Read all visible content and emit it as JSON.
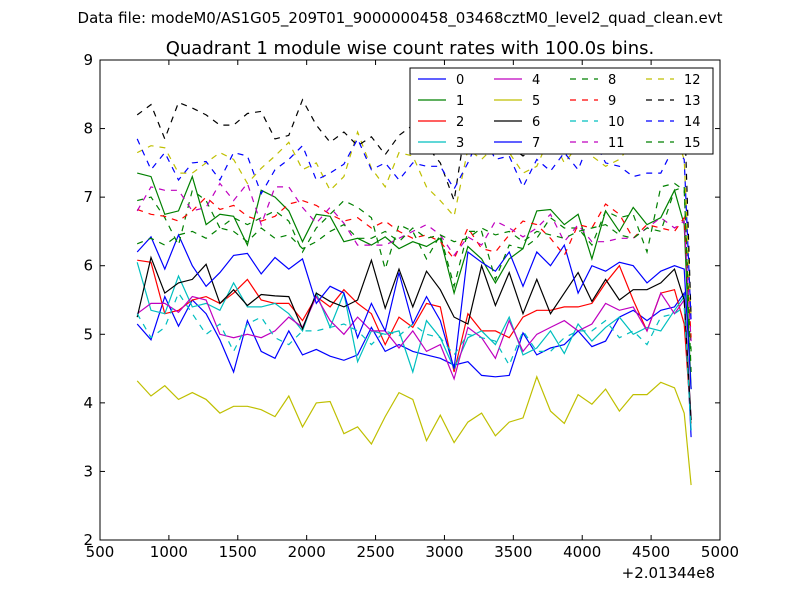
{
  "chart_data": {
    "type": "line",
    "supertitle": "Data file: modeM0/AS1G05_209T01_9000000458_03468cztM0_level2_quad_clean.evt",
    "title": "Quadrant 1 module wise count rates with 100.0s bins.",
    "xlabel": "",
    "ylabel": "",
    "x_offset_label": "+2.01344e8",
    "xlim": [
      500,
      5000
    ],
    "ylim": [
      2,
      9
    ],
    "xticks": [
      500,
      1000,
      1500,
      2000,
      2500,
      3000,
      3500,
      4000,
      4500,
      5000
    ],
    "xtick_labels": [
      "500",
      "1000",
      "1500",
      "2000",
      "2500",
      "3000",
      "3500",
      "4000",
      "4500",
      "5000"
    ],
    "yticks": [
      2,
      3,
      4,
      5,
      6,
      7,
      8,
      9
    ],
    "ytick_labels": [
      "2",
      "3",
      "4",
      "5",
      "6",
      "7",
      "8",
      "9"
    ],
    "grid": false,
    "legend_position": "top-right",
    "x": [
      770,
      870,
      970,
      1070,
      1170,
      1270,
      1370,
      1470,
      1570,
      1670,
      1770,
      1870,
      1970,
      2070,
      2170,
      2270,
      2370,
      2470,
      2570,
      2670,
      2770,
      2870,
      2970,
      3070,
      3170,
      3270,
      3370,
      3470,
      3570,
      3670,
      3770,
      3870,
      3970,
      4070,
      4170,
      4270,
      4370,
      4470,
      4570,
      4670,
      4740,
      4790
    ],
    "series": [
      {
        "name": "0",
        "color": "#0000ff",
        "dash": "solid",
        "values": [
          5.15,
          4.92,
          5.55,
          5.12,
          5.5,
          5.3,
          4.92,
          4.45,
          5.2,
          4.75,
          4.65,
          5.05,
          4.7,
          4.78,
          4.68,
          4.62,
          4.7,
          5.1,
          4.75,
          4.85,
          4.75,
          4.7,
          4.65,
          4.55,
          4.6,
          4.4,
          4.38,
          4.4,
          5.02,
          4.7,
          4.8,
          4.85,
          5.05,
          4.82,
          4.9,
          5.25,
          5.35,
          5.2,
          5.35,
          5.4,
          5.6,
          3.5
        ]
      },
      {
        "name": "1",
        "color": "#008000",
        "dash": "solid",
        "values": [
          7.35,
          7.3,
          6.75,
          6.8,
          7.3,
          6.6,
          6.75,
          6.72,
          6.3,
          7.1,
          7.0,
          6.8,
          6.35,
          6.75,
          6.72,
          6.35,
          6.4,
          6.3,
          6.42,
          6.25,
          6.35,
          6.28,
          6.4,
          5.6,
          6.28,
          6.1,
          5.75,
          6.1,
          6.25,
          6.8,
          6.82,
          6.6,
          6.75,
          6.1,
          6.8,
          6.5,
          6.85,
          6.6,
          6.7,
          7.1,
          6.6,
          4.2
        ]
      },
      {
        "name": "2",
        "color": "#ff0000",
        "dash": "solid",
        "values": [
          6.08,
          6.05,
          5.3,
          5.35,
          5.5,
          5.55,
          5.45,
          5.6,
          5.8,
          5.5,
          5.45,
          5.45,
          5.2,
          5.55,
          5.4,
          5.65,
          5.45,
          5.3,
          4.85,
          5.25,
          5.1,
          5.45,
          5.4,
          4.45,
          5.3,
          5.05,
          5.05,
          4.95,
          5.25,
          5.35,
          5.35,
          5.4,
          5.4,
          5.45,
          5.75,
          6.0,
          5.5,
          5.05,
          5.6,
          5.65,
          5.15,
          3.7
        ]
      },
      {
        "name": "3",
        "color": "#00bfbf",
        "dash": "solid",
        "values": [
          6.05,
          5.35,
          5.3,
          5.85,
          5.4,
          5.45,
          5.35,
          5.75,
          5.4,
          5.4,
          5.45,
          5.3,
          5.05,
          5.6,
          5.1,
          5.6,
          4.6,
          5.05,
          5.0,
          5.05,
          4.45,
          5.2,
          4.95,
          4.5,
          4.95,
          5.05,
          4.85,
          5.25,
          4.7,
          4.8,
          5.05,
          4.72,
          5.15,
          4.9,
          5.1,
          5.25,
          5.0,
          5.1,
          5.05,
          5.35,
          5.55,
          3.6
        ]
      },
      {
        "name": "4",
        "color": "#bf00bf",
        "dash": "solid",
        "values": [
          5.3,
          5.45,
          5.45,
          5.32,
          5.55,
          5.5,
          5.0,
          4.95,
          5.0,
          4.95,
          5.05,
          5.25,
          5.1,
          5.55,
          5.2,
          5.0,
          5.25,
          5.05,
          5.05,
          4.8,
          5.05,
          4.75,
          4.85,
          4.35,
          5.1,
          4.95,
          4.65,
          5.2,
          4.75,
          5.0,
          5.1,
          5.2,
          5.05,
          5.15,
          5.45,
          5.35,
          5.4,
          5.05,
          5.6,
          5.3,
          5.5,
          3.75
        ]
      },
      {
        "name": "5",
        "color": "#bfbf00",
        "dash": "solid",
        "values": [
          4.32,
          4.1,
          4.25,
          4.05,
          4.15,
          4.05,
          3.85,
          3.95,
          3.95,
          3.9,
          3.8,
          4.1,
          3.65,
          4.0,
          4.02,
          3.55,
          3.65,
          3.4,
          3.8,
          4.15,
          4.05,
          3.45,
          3.82,
          3.42,
          3.72,
          3.85,
          3.52,
          3.72,
          3.78,
          4.38,
          3.88,
          3.7,
          4.12,
          3.98,
          4.2,
          3.88,
          4.12,
          4.12,
          4.3,
          4.22,
          3.85,
          2.8
        ]
      },
      {
        "name": "6",
        "color": "#000000",
        "dash": "solid",
        "values": [
          5.25,
          6.12,
          5.6,
          5.75,
          5.8,
          6.02,
          5.45,
          5.65,
          5.42,
          5.58,
          5.56,
          5.55,
          5.08,
          5.6,
          5.48,
          5.4,
          5.5,
          6.08,
          5.38,
          5.95,
          5.4,
          5.92,
          5.65,
          5.25,
          5.15,
          6.0,
          5.42,
          5.9,
          5.3,
          5.8,
          5.3,
          5.6,
          5.9,
          5.48,
          5.8,
          5.5,
          5.65,
          5.65,
          5.75,
          5.95,
          5.5,
          3.75
        ]
      },
      {
        "name": "7",
        "color": "#0000ff",
        "dash": "solid",
        "values": [
          6.2,
          6.42,
          5.95,
          6.45,
          6.0,
          5.7,
          5.9,
          6.15,
          6.18,
          5.88,
          6.12,
          5.95,
          6.1,
          5.45,
          5.7,
          5.6,
          4.95,
          5.45,
          5.05,
          5.9,
          5.15,
          5.55,
          5.2,
          4.5,
          6.2,
          6.05,
          5.92,
          6.2,
          5.7,
          6.2,
          6.0,
          6.3,
          5.6,
          6.0,
          5.92,
          6.05,
          6.0,
          5.75,
          5.92,
          6.0,
          5.95,
          4.2
        ]
      },
      {
        "name": "8",
        "color": "#008000",
        "dash": "dashed",
        "values": [
          6.95,
          7.0,
          6.7,
          6.3,
          7.1,
          6.95,
          6.55,
          6.7,
          6.6,
          6.7,
          6.8,
          6.65,
          6.2,
          6.55,
          6.75,
          6.95,
          6.85,
          6.7,
          5.95,
          6.6,
          6.5,
          6.1,
          6.45,
          5.7,
          6.5,
          6.5,
          5.8,
          6.3,
          6.25,
          6.4,
          6.7,
          6.55,
          6.55,
          6.3,
          6.8,
          6.7,
          6.75,
          6.2,
          7.15,
          7.2,
          7.1,
          4.75
        ]
      },
      {
        "name": "9",
        "color": "#ff0000",
        "dash": "dashed",
        "values": [
          6.82,
          6.75,
          6.72,
          6.65,
          6.8,
          7.0,
          6.82,
          6.88,
          6.72,
          6.65,
          6.72,
          6.9,
          6.95,
          6.88,
          6.75,
          6.65,
          6.7,
          6.55,
          6.65,
          6.5,
          6.4,
          6.45,
          6.35,
          6.1,
          6.55,
          6.25,
          6.2,
          6.45,
          6.65,
          6.6,
          6.4,
          6.15,
          6.6,
          6.55,
          6.9,
          6.75,
          6.4,
          6.6,
          6.55,
          6.5,
          6.7,
          4.95
        ]
      },
      {
        "name": "10",
        "color": "#00bfbf",
        "dash": "dashed",
        "values": [
          5.3,
          4.95,
          5.1,
          5.6,
          5.3,
          5.0,
          5.15,
          4.75,
          5.15,
          5.25,
          4.95,
          4.85,
          5.05,
          5.05,
          5.1,
          5.15,
          5.05,
          4.85,
          5.05,
          4.98,
          5.15,
          5.0,
          4.95,
          4.7,
          5.0,
          4.95,
          4.9,
          4.55,
          5.05,
          4.75,
          4.75,
          4.95,
          5.05,
          5.05,
          5.2,
          4.95,
          5.05,
          4.85,
          5.25,
          5.3,
          5.4,
          3.6
        ]
      },
      {
        "name": "11",
        "color": "#bf00bf",
        "dash": "dashed",
        "values": [
          6.8,
          7.15,
          7.1,
          7.1,
          6.8,
          6.85,
          7.2,
          6.95,
          7.2,
          6.6,
          7.15,
          7.15,
          6.85,
          6.62,
          6.85,
          6.62,
          6.3,
          6.3,
          6.3,
          6.4,
          6.5,
          6.6,
          6.45,
          6.15,
          6.42,
          6.3,
          6.65,
          6.55,
          6.42,
          6.55,
          6.75,
          6.35,
          6.6,
          6.35,
          6.35,
          6.4,
          6.4,
          6.55,
          6.7,
          6.55,
          6.65,
          4.9
        ]
      },
      {
        "name": "12",
        "color": "#bfbf00",
        "dash": "dashed",
        "values": [
          7.65,
          7.75,
          7.72,
          7.35,
          7.35,
          7.5,
          7.65,
          7.55,
          7.2,
          7.42,
          7.6,
          7.8,
          7.4,
          7.5,
          7.1,
          7.3,
          7.95,
          7.42,
          7.15,
          7.65,
          7.6,
          7.15,
          6.95,
          6.72,
          7.7,
          7.55,
          7.75,
          7.65,
          7.35,
          7.45,
          7.9,
          7.5,
          7.75,
          7.6,
          7.45,
          7.55,
          7.8,
          7.75,
          7.9,
          7.95,
          7.55,
          5.25
        ]
      },
      {
        "name": "13",
        "color": "#000000",
        "dash": "dashed",
        "values": [
          8.2,
          8.35,
          7.85,
          8.38,
          8.3,
          8.2,
          8.05,
          8.05,
          8.22,
          8.25,
          7.85,
          7.9,
          8.42,
          8.05,
          7.8,
          7.95,
          7.75,
          7.88,
          7.62,
          7.9,
          8.05,
          7.75,
          7.5,
          6.95,
          8.25,
          7.65,
          8.2,
          7.75,
          7.6,
          7.72,
          7.95,
          8.22,
          8.2,
          7.85,
          8.15,
          8.25,
          8.4,
          8.75,
          8.55,
          8.3,
          8.35,
          5.25
        ]
      },
      {
        "name": "14",
        "color": "#0000ff",
        "dash": "dashed",
        "values": [
          7.85,
          7.4,
          7.65,
          7.25,
          7.5,
          7.52,
          7.25,
          7.65,
          7.6,
          7.05,
          7.4,
          7.55,
          7.75,
          7.25,
          7.35,
          7.48,
          7.85,
          7.4,
          7.5,
          7.25,
          7.5,
          7.45,
          7.45,
          7.12,
          7.5,
          7.95,
          7.55,
          7.6,
          7.15,
          7.55,
          7.38,
          7.65,
          7.4,
          7.9,
          7.5,
          7.45,
          7.3,
          7.35,
          7.35,
          7.75,
          7.55,
          5.2
        ]
      },
      {
        "name": "15",
        "color": "#008000",
        "dash": "dashed",
        "values": [
          6.32,
          6.4,
          6.3,
          6.45,
          6.5,
          6.4,
          6.55,
          6.5,
          6.35,
          6.55,
          6.4,
          6.45,
          6.25,
          6.35,
          6.5,
          6.6,
          6.4,
          6.4,
          6.5,
          6.35,
          6.55,
          6.4,
          6.45,
          6.35,
          6.4,
          6.55,
          6.45,
          6.5,
          6.35,
          6.5,
          6.45,
          6.4,
          6.5,
          6.55,
          6.6,
          6.45,
          6.4,
          6.55,
          6.5,
          7.1,
          7.15,
          4.45
        ]
      }
    ]
  }
}
